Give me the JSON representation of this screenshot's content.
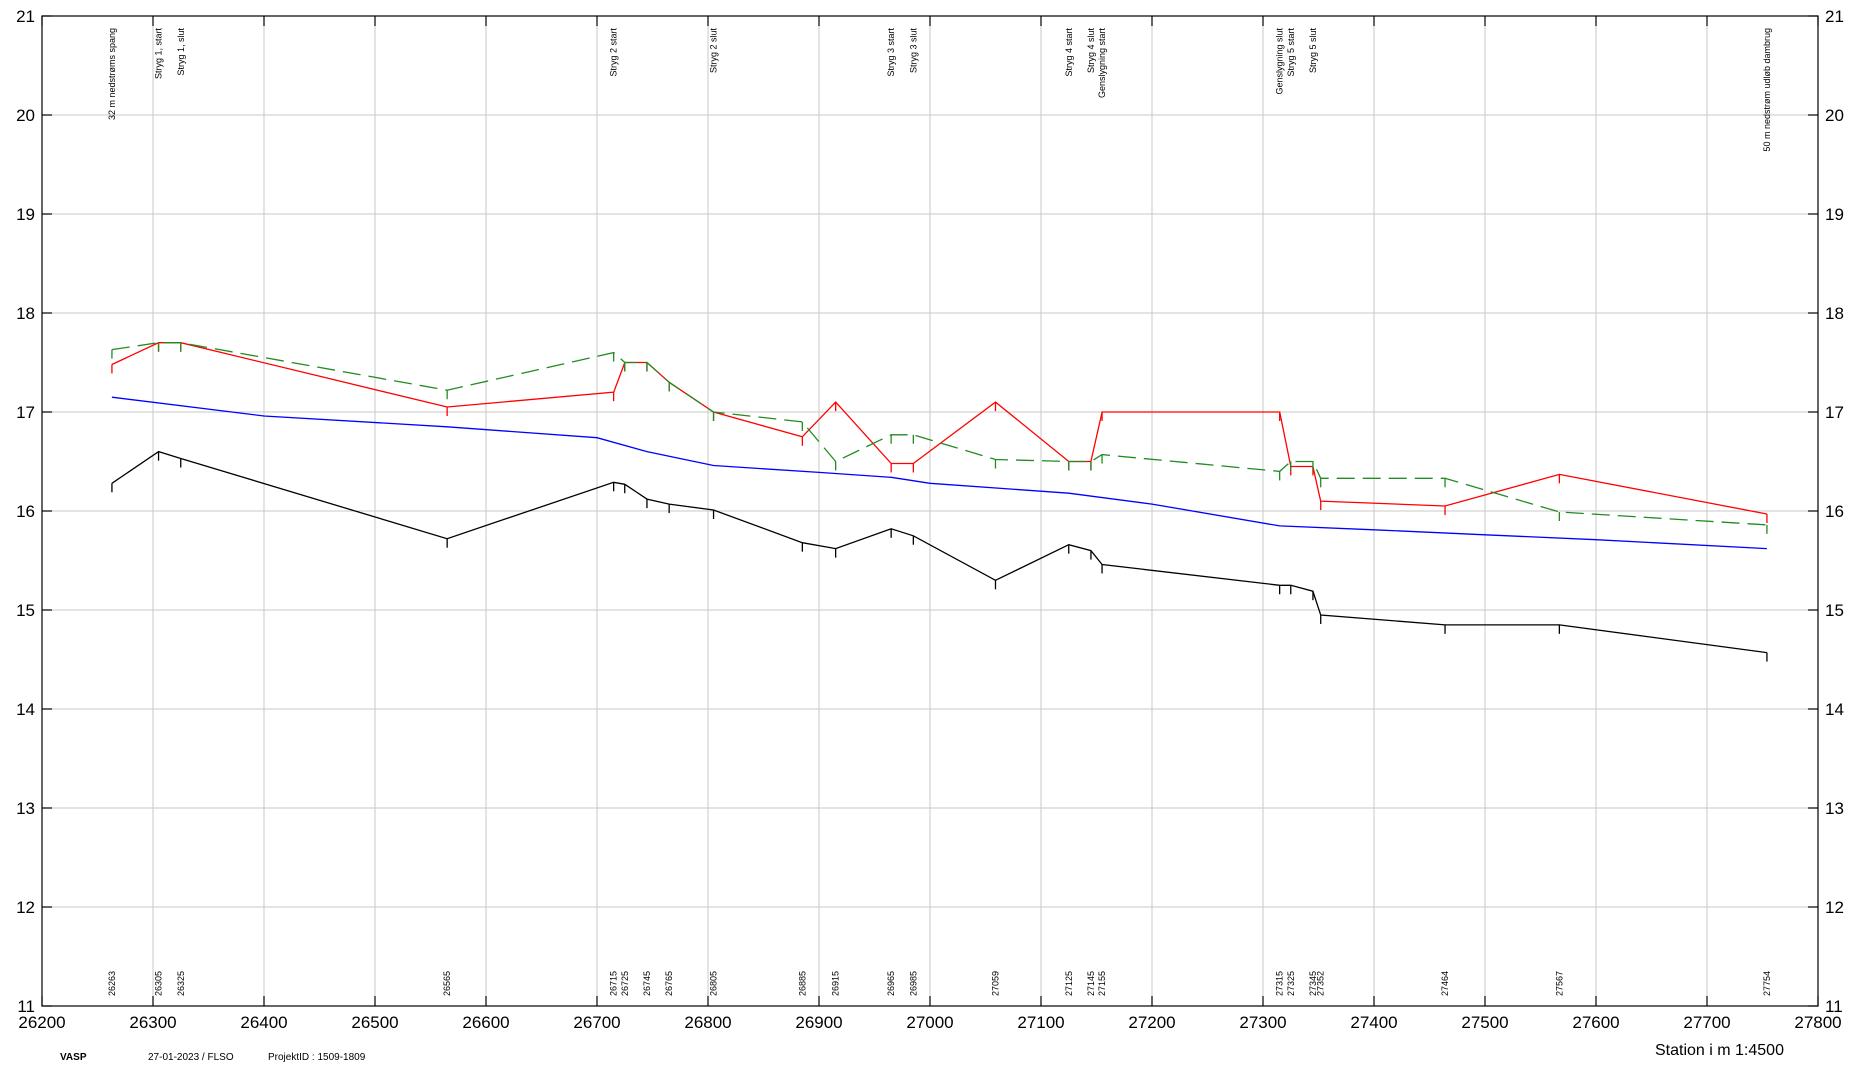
{
  "chart_data": {
    "type": "line",
    "xlim": [
      26200,
      27800
    ],
    "ylim": [
      11,
      21
    ],
    "x_ticks": [
      26200,
      26300,
      26400,
      26500,
      26600,
      26700,
      26800,
      26900,
      27000,
      27100,
      27200,
      27300,
      27400,
      27500,
      27600,
      27700,
      27800
    ],
    "y_ticks": [
      11,
      12,
      13,
      14,
      15,
      16,
      17,
      18,
      19,
      20,
      21
    ],
    "grid": true,
    "xlabel": "Station i m  1:4500",
    "series": [
      {
        "color": "#ff0000",
        "dash": "none",
        "points": [
          [
            26263,
            17.48
          ],
          [
            26305,
            17.7
          ],
          [
            26325,
            17.7
          ],
          [
            26565,
            17.05
          ],
          [
            26715,
            17.2
          ],
          [
            26725,
            17.5
          ],
          [
            26745,
            17.5
          ],
          [
            26765,
            17.3
          ],
          [
            26805,
            17.0
          ],
          [
            26885,
            16.75
          ],
          [
            26915,
            17.1
          ],
          [
            26965,
            16.48
          ],
          [
            26985,
            16.48
          ],
          [
            27059,
            17.1
          ],
          [
            27125,
            16.5
          ],
          [
            27145,
            16.5
          ],
          [
            27155,
            17.0
          ],
          [
            27315,
            17.0
          ],
          [
            27325,
            16.45
          ],
          [
            27345,
            16.45
          ],
          [
            27352,
            16.1
          ],
          [
            27464,
            16.05
          ],
          [
            27567,
            16.37
          ],
          [
            27754,
            15.97
          ]
        ]
      },
      {
        "color": "#228b22",
        "dash": "18 8",
        "points": [
          [
            26263,
            17.63
          ],
          [
            26305,
            17.7
          ],
          [
            26325,
            17.7
          ],
          [
            26565,
            17.22
          ],
          [
            26715,
            17.6
          ],
          [
            26725,
            17.5
          ],
          [
            26745,
            17.5
          ],
          [
            26765,
            17.3
          ],
          [
            26805,
            17.0
          ],
          [
            26885,
            16.9
          ],
          [
            26915,
            16.5
          ],
          [
            26965,
            16.77
          ],
          [
            26985,
            16.77
          ],
          [
            27059,
            16.52
          ],
          [
            27125,
            16.5
          ],
          [
            27145,
            16.5
          ],
          [
            27155,
            16.57
          ],
          [
            27315,
            16.4
          ],
          [
            27325,
            16.5
          ],
          [
            27345,
            16.5
          ],
          [
            27352,
            16.33
          ],
          [
            27464,
            16.33
          ],
          [
            27567,
            15.99
          ],
          [
            27754,
            15.86
          ]
        ]
      },
      {
        "color": "#0000ff",
        "dash": "none",
        "points": [
          [
            26263,
            17.15
          ],
          [
            26400,
            16.96
          ],
          [
            26565,
            16.85
          ],
          [
            26700,
            16.74
          ],
          [
            26745,
            16.6
          ],
          [
            26805,
            16.46
          ],
          [
            26900,
            16.39
          ],
          [
            26965,
            16.34
          ],
          [
            27000,
            16.28
          ],
          [
            27125,
            16.18
          ],
          [
            27200,
            16.07
          ],
          [
            27315,
            15.85
          ],
          [
            27400,
            15.81
          ],
          [
            27500,
            15.76
          ],
          [
            27600,
            15.71
          ],
          [
            27754,
            15.62
          ]
        ]
      },
      {
        "color": "#000000",
        "dash": "none",
        "points": [
          [
            26263,
            16.28
          ],
          [
            26305,
            16.6
          ],
          [
            26325,
            16.53
          ],
          [
            26565,
            15.72
          ],
          [
            26715,
            16.29
          ],
          [
            26725,
            16.27
          ],
          [
            26745,
            16.12
          ],
          [
            26765,
            16.07
          ],
          [
            26805,
            16.01
          ],
          [
            26885,
            15.68
          ],
          [
            26915,
            15.62
          ],
          [
            26965,
            15.82
          ],
          [
            26985,
            15.75
          ],
          [
            27059,
            15.3
          ],
          [
            27125,
            15.66
          ],
          [
            27145,
            15.6
          ],
          [
            27155,
            15.46
          ],
          [
            27315,
            15.25
          ],
          [
            27325,
            15.25
          ],
          [
            27345,
            15.19
          ],
          [
            27352,
            14.95
          ],
          [
            27464,
            14.85
          ],
          [
            27567,
            14.85
          ],
          [
            27754,
            14.57
          ]
        ]
      }
    ],
    "stations": [
      {
        "x": 26263,
        "label": "26263"
      },
      {
        "x": 26305,
        "label": "26305"
      },
      {
        "x": 26325,
        "label": "26325"
      },
      {
        "x": 26565,
        "label": "26565"
      },
      {
        "x": 26715,
        "label": "26715"
      },
      {
        "x": 26725,
        "label": "26725"
      },
      {
        "x": 26745,
        "label": "26745"
      },
      {
        "x": 26765,
        "label": "26765"
      },
      {
        "x": 26805,
        "label": "26805"
      },
      {
        "x": 26885,
        "label": "26885"
      },
      {
        "x": 26915,
        "label": "26915"
      },
      {
        "x": 26965,
        "label": "26965"
      },
      {
        "x": 26985,
        "label": "26985"
      },
      {
        "x": 27059,
        "label": "27059"
      },
      {
        "x": 27125,
        "label": "27125"
      },
      {
        "x": 27145,
        "label": "27145"
      },
      {
        "x": 27155,
        "label": "27155"
      },
      {
        "x": 27315,
        "label": "27315"
      },
      {
        "x": 27325,
        "label": "27325"
      },
      {
        "x": 27345,
        "label": "27345"
      },
      {
        "x": 27352,
        "label": "27352"
      },
      {
        "x": 27464,
        "label": "27464"
      },
      {
        "x": 27567,
        "label": "27567"
      },
      {
        "x": 27754,
        "label": "27754"
      }
    ],
    "annotations": [
      {
        "x": 26263,
        "text": "32 m nedstrøms spang"
      },
      {
        "x": 26305,
        "text": "Stryg 1, start"
      },
      {
        "x": 26325,
        "text": "Stryg 1, slut"
      },
      {
        "x": 26715,
        "text": "Stryg 2 start"
      },
      {
        "x": 26805,
        "text": "Stryg 2 slut"
      },
      {
        "x": 26965,
        "text": "Stryg 3 start"
      },
      {
        "x": 26985,
        "text": "Stryg 3 slut"
      },
      {
        "x": 27125,
        "text": "Stryg 4 start"
      },
      {
        "x": 27145,
        "text": "Stryg 4 slut"
      },
      {
        "x": 27155,
        "text": "Genslygning start"
      },
      {
        "x": 27315,
        "text": "Genslygning slut"
      },
      {
        "x": 27325,
        "text": "Stryg 5 start"
      },
      {
        "x": 27345,
        "text": "Stryg 5 slut"
      },
      {
        "x": 27754,
        "text": "50 m nedstrøm udløb dambrug"
      }
    ]
  },
  "footer": {
    "left": "VASP",
    "date": "27-01-2023 / FLSO",
    "project": "ProjektID : 1509-1809",
    "scale": "Station i m  1:4500"
  }
}
